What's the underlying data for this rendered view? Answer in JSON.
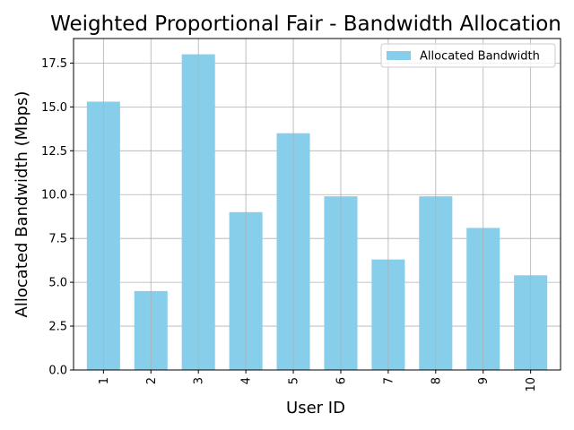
{
  "chart_data": {
    "type": "bar",
    "title": "Weighted Proportional Fair - Bandwidth Allocation",
    "xlabel": "User ID",
    "ylabel": "Allocated Bandwidth (Mbps)",
    "categories": [
      "1",
      "2",
      "3",
      "4",
      "5",
      "6",
      "7",
      "8",
      "9",
      "10"
    ],
    "series": [
      {
        "name": "Allocated Bandwidth",
        "values": [
          15.3,
          4.5,
          18.0,
          9.0,
          13.5,
          9.9,
          6.3,
          9.9,
          8.1,
          5.4
        ]
      }
    ],
    "ylim": [
      0,
      18.9
    ],
    "yticks": [
      "0.0",
      "2.5",
      "5.0",
      "7.5",
      "10.0",
      "12.5",
      "15.0",
      "17.5"
    ],
    "grid": true,
    "legend_position": "top-right",
    "colors": {
      "bar": "#87ceeb",
      "grid": "#b0b0b0",
      "axis": "#000000"
    }
  }
}
